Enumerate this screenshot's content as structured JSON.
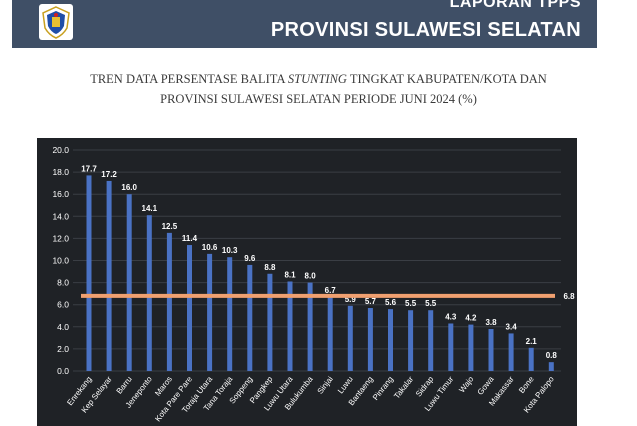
{
  "header": {
    "line1": "LAPORAN TPPS",
    "line2": "PROVINSI SULAWESI SELATAN",
    "logo_icon": "provincial-emblem-icon"
  },
  "subtitle": {
    "line1_pre": "TREN DATA PERSENTASE BALITA ",
    "line1_em": "STUNTING",
    "line1_post": " TINGKAT KABUPATEN/KOTA DAN",
    "line2": "PROVINSI SULAWESI SELATAN PERIODE JUNI 2024 (%)"
  },
  "chart_data": {
    "type": "bar",
    "categories": [
      "Enrekang",
      "Kep Selayar",
      "Barru",
      "Jeneponto",
      "Maros",
      "Kota Pare Pare",
      "Toraja Utara",
      "Tana Toraja",
      "Soppeng",
      "Pangkep",
      "Luwu Utara",
      "Bulukumba",
      "Sinjai",
      "Luwu",
      "Bantaeng",
      "Pinrang",
      "Takalar",
      "Sidrap",
      "Luwu Timur",
      "Wajo",
      "Gowa",
      "Makassar",
      "Bone",
      "Kota Palopo"
    ],
    "values": [
      17.7,
      17.2,
      16.0,
      14.1,
      12.5,
      11.4,
      10.6,
      10.3,
      9.6,
      8.8,
      8.1,
      8.0,
      6.7,
      5.9,
      5.7,
      5.6,
      5.5,
      5.5,
      4.3,
      4.2,
      3.8,
      3.4,
      2.1,
      0.8
    ],
    "value_labels": [
      "17.7",
      "17.2",
      "16.0",
      "14.1",
      "12.5",
      "11.4",
      "10.6",
      "10.3",
      "9.6",
      "8.8",
      "8.1",
      "8.0",
      "6.7",
      "5.9",
      "5.7",
      "5.6",
      "5.5",
      "5.5",
      "4.3",
      "4.2",
      "3.8",
      "3.4",
      "2.1",
      "0.8"
    ],
    "yticks": [
      "0.0",
      "2.0",
      "4.0",
      "6.0",
      "8.0",
      "10.0",
      "12.0",
      "14.0",
      "16.0",
      "18.0",
      "20.0"
    ],
    "ylim": [
      0,
      20
    ],
    "reference_line": {
      "value": 6.8,
      "label": "6.8"
    },
    "grid": true,
    "colors": {
      "bar": "#4a72c4",
      "reference": "#f0a070",
      "background": "#1f2226",
      "text": "#ffffff",
      "grid": "#3a3e44"
    }
  }
}
